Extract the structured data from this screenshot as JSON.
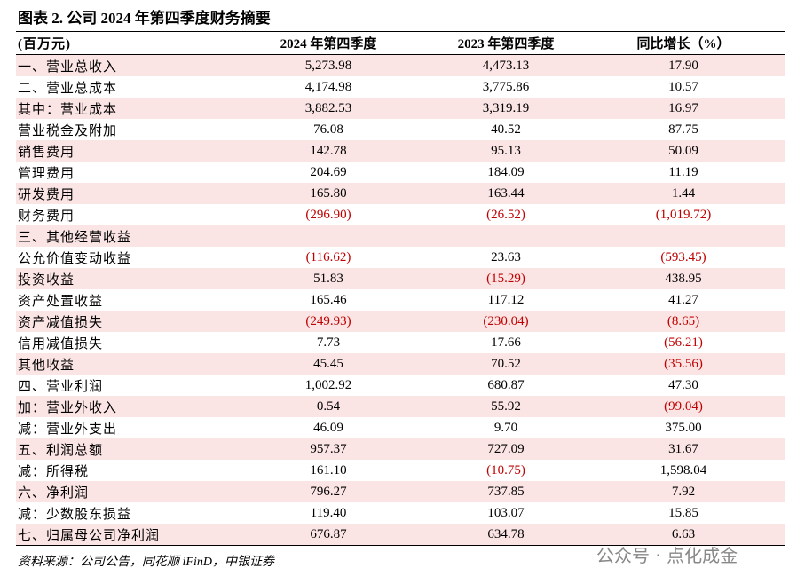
{
  "title": "图表 2. 公司 2024 年第四季度财务摘要",
  "table": {
    "header": [
      "(百万元)",
      "2024 年第四季度",
      "2023 年第四季度",
      "同比增长（%）"
    ],
    "rows": [
      [
        "一、营业总收入",
        "5,273.98",
        "4,473.13",
        "17.90"
      ],
      [
        "二、营业总成本",
        "4,174.98",
        "3,775.86",
        "10.57"
      ],
      [
        "其中：营业成本",
        "3,882.53",
        "3,319.19",
        "16.97"
      ],
      [
        "营业税金及附加",
        "76.08",
        "40.52",
        "87.75"
      ],
      [
        "销售费用",
        "142.78",
        "95.13",
        "50.09"
      ],
      [
        "管理费用",
        "204.69",
        "184.09",
        "11.19"
      ],
      [
        "研发费用",
        "165.80",
        "163.44",
        "1.44"
      ],
      [
        "财务费用",
        "(296.90)",
        "(26.52)",
        "(1,019.72)"
      ],
      [
        "三、其他经营收益"
      ],
      [
        "公允价值变动收益",
        "(116.62)",
        "23.63",
        "(593.45)"
      ],
      [
        "投资收益",
        "51.83",
        "(15.29)",
        "438.95"
      ],
      [
        "资产处置收益",
        "165.46",
        "117.12",
        "41.27"
      ],
      [
        "资产减值损失",
        "(249.93)",
        "(230.04)",
        "(8.65)"
      ],
      [
        "信用减值损失",
        "7.73",
        "17.66",
        "(56.21)"
      ],
      [
        "其他收益",
        "45.45",
        "70.52",
        "(35.56)"
      ],
      [
        "四、营业利润",
        "1,002.92",
        "680.87",
        "47.30"
      ],
      [
        "加：营业外收入",
        "0.54",
        "55.92",
        "(99.04)"
      ],
      [
        "减：营业外支出",
        "46.09",
        "9.70",
        "375.00"
      ],
      [
        "五、利润总额",
        "957.37",
        "727.09",
        "31.67"
      ],
      [
        "减：所得税",
        "161.10",
        "(10.75)",
        "1,598.04"
      ],
      [
        "六、净利润",
        "796.27",
        "737.85",
        "7.92"
      ],
      [
        "减：少数股东损益",
        "119.40",
        "103.07",
        "15.85"
      ],
      [
        "七、归属母公司净利润",
        "676.87",
        "634.78",
        "6.63"
      ]
    ]
  },
  "source": "资料来源：公司公告，同花顺 iFinD，中银证券",
  "watermark": "公众号 · 点化成金"
}
